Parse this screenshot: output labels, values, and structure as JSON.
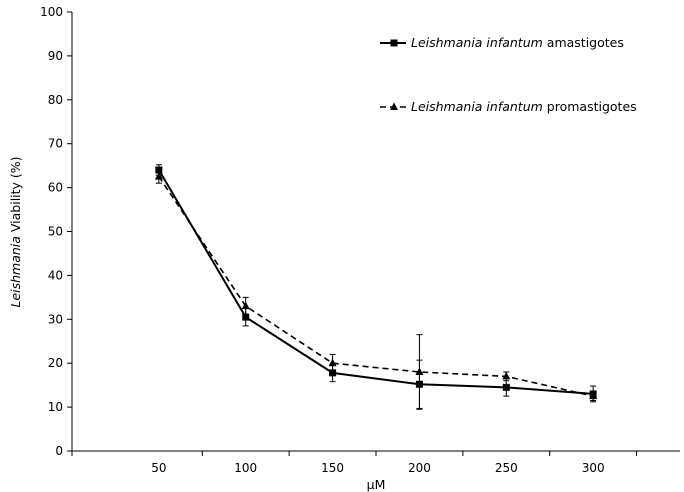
{
  "chart_data": {
    "type": "line",
    "title": "",
    "xlabel": "µM",
    "ylabel": {
      "italic": "Leishmania",
      "rest": " Viability (%)"
    },
    "x": [
      50,
      100,
      150,
      200,
      250,
      300
    ],
    "xlim": [
      0,
      350
    ],
    "ylim": [
      0,
      100
    ],
    "yticks": [
      0,
      10,
      20,
      30,
      40,
      50,
      60,
      70,
      80,
      90,
      100
    ],
    "xticks": [
      50,
      100,
      150,
      200,
      250,
      300
    ],
    "grid": false,
    "legend_position": "top-right",
    "series": [
      {
        "name_italic": "Leishmania infantum",
        "name_rest": " amastigotes",
        "values": [
          64,
          30.5,
          17.8,
          15.2,
          14.5,
          13
        ],
        "errors": [
          1.2,
          2,
          2,
          5.5,
          2,
          1.8
        ],
        "line_style": "solid",
        "marker": "square",
        "color": "#000000"
      },
      {
        "name_italic": "Leishmania infantum",
        "name_rest": " promastigotes",
        "values": [
          62.5,
          33,
          20,
          18,
          17,
          12.5
        ],
        "errors": [
          1.5,
          2,
          2,
          8.5,
          1,
          1
        ],
        "line_style": "dashed",
        "marker": "triangle",
        "color": "#000000"
      }
    ]
  }
}
